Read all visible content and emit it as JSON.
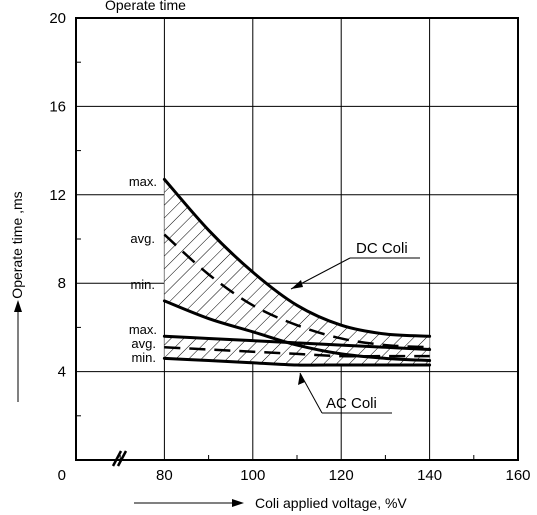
{
  "chart_data": {
    "type": "line",
    "title": "Operate time",
    "xlabel": "Coli applied voltage, %V",
    "ylabel": "Operate time ,ms",
    "xlim": [
      60,
      160
    ],
    "ylim": [
      0,
      20
    ],
    "x_break": true,
    "grid": true,
    "x_ticks": [
      "80",
      "100",
      "120",
      "140",
      "160"
    ],
    "x_origin_label": "0",
    "y_ticks": [
      "4",
      "8",
      "12",
      "16",
      "20"
    ],
    "annotations": {
      "dc": {
        "max": "max.",
        "avg": "avg.",
        "min": "min."
      },
      "ac": {
        "max": "max.",
        "avg": "avg.",
        "min": "min."
      }
    },
    "series": [
      {
        "name": "DC Coli",
        "band": "max",
        "x": [
          80,
          90,
          100,
          110,
          120,
          130,
          140
        ],
        "y": [
          12.7,
          10.4,
          8.5,
          7.0,
          6.1,
          5.7,
          5.6
        ]
      },
      {
        "name": "DC Coli",
        "band": "avg",
        "x": [
          80,
          90,
          100,
          110,
          120,
          130,
          140
        ],
        "y": [
          10.2,
          8.4,
          7.0,
          6.1,
          5.5,
          5.2,
          5.1
        ]
      },
      {
        "name": "DC Coli",
        "band": "min",
        "x": [
          80,
          90,
          100,
          110,
          120,
          130,
          140
        ],
        "y": [
          7.2,
          6.4,
          5.8,
          5.2,
          4.8,
          4.6,
          4.5
        ]
      },
      {
        "name": "AC Coli",
        "band": "max",
        "x": [
          80,
          90,
          100,
          110,
          120,
          130,
          140
        ],
        "y": [
          5.6,
          5.5,
          5.4,
          5.3,
          5.2,
          5.1,
          5.0
        ]
      },
      {
        "name": "AC Coli",
        "band": "avg",
        "x": [
          80,
          90,
          100,
          110,
          120,
          130,
          140
        ],
        "y": [
          5.1,
          5.0,
          4.9,
          4.8,
          4.7,
          4.7,
          4.7
        ]
      },
      {
        "name": "AC Coli",
        "band": "min",
        "x": [
          80,
          90,
          100,
          110,
          120,
          130,
          140
        ],
        "y": [
          4.6,
          4.5,
          4.4,
          4.3,
          4.3,
          4.3,
          4.3
        ]
      }
    ]
  }
}
